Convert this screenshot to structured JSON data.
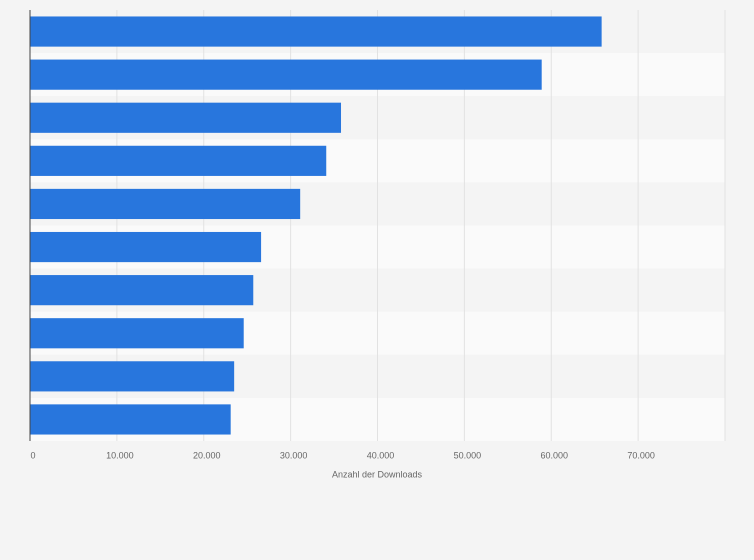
{
  "chart_data": {
    "type": "bar",
    "orientation": "horizontal",
    "x_label": "Anzahl der Downloads",
    "categories": [
      null,
      null,
      null,
      null,
      null,
      null,
      null,
      null,
      null,
      null
    ],
    "values": [
      65800,
      58900,
      35800,
      34100,
      31100,
      26600,
      25700,
      24600,
      23500,
      23100
    ],
    "color": "#2876dd",
    "xlim": [
      0,
      80000
    ],
    "xticks": [
      0,
      {
        "value": 10000,
        "label": "10.000"
      },
      {
        "value": 20000,
        "label": "20.000"
      },
      {
        "value": 30000,
        "label": "30.000"
      },
      {
        "value": 40000,
        "label": "40.000"
      },
      {
        "value": 50000,
        "label": "50.000"
      },
      {
        "value": 60000,
        "label": "60.000"
      },
      {
        "value": 70000,
        "label": "70.000"
      }
    ],
    "grid": true
  }
}
